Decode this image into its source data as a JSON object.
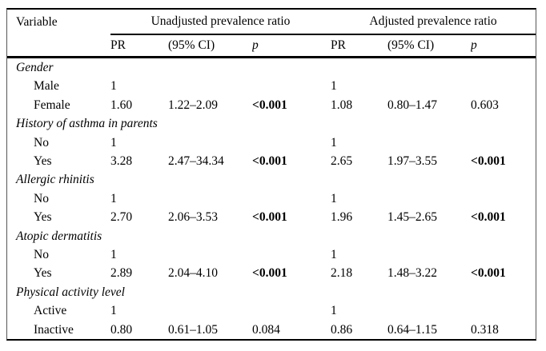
{
  "table": {
    "header": {
      "variable": "Variable",
      "groups": [
        {
          "label": "Unadjusted prevalence ratio"
        },
        {
          "label": "Adjusted prevalence ratio"
        }
      ],
      "subheaders": [
        "PR",
        "(95% CI)",
        "p",
        "PR",
        "(95% CI)",
        "p"
      ]
    },
    "sections": [
      {
        "label": "Gender",
        "rows": [
          {
            "label": "Male",
            "cells": [
              {
                "text": "1",
                "bold": false
              },
              {
                "text": "",
                "bold": false
              },
              {
                "text": "",
                "bold": false
              },
              {
                "text": "1",
                "bold": false
              },
              {
                "text": "",
                "bold": false
              },
              {
                "text": "",
                "bold": false
              }
            ]
          },
          {
            "label": "Female",
            "cells": [
              {
                "text": "1.60",
                "bold": false
              },
              {
                "text": "1.22–2.09",
                "bold": false
              },
              {
                "text": "<0.001",
                "bold": true
              },
              {
                "text": "1.08",
                "bold": false
              },
              {
                "text": "0.80–1.47",
                "bold": false
              },
              {
                "text": "0.603",
                "bold": false
              }
            ]
          }
        ]
      },
      {
        "label": "History of asthma in parents",
        "rows": [
          {
            "label": "No",
            "cells": [
              {
                "text": "1",
                "bold": false
              },
              {
                "text": "",
                "bold": false
              },
              {
                "text": "",
                "bold": false
              },
              {
                "text": "1",
                "bold": false
              },
              {
                "text": "",
                "bold": false
              },
              {
                "text": "",
                "bold": false
              }
            ]
          },
          {
            "label": "Yes",
            "cells": [
              {
                "text": "3.28",
                "bold": false
              },
              {
                "text": "2.47–34.34",
                "bold": false
              },
              {
                "text": "<0.001",
                "bold": true
              },
              {
                "text": "2.65",
                "bold": false
              },
              {
                "text": "1.97–3.55",
                "bold": false
              },
              {
                "text": "<0.001",
                "bold": true
              }
            ]
          }
        ]
      },
      {
        "label": "Allergic rhinitis",
        "rows": [
          {
            "label": "No",
            "cells": [
              {
                "text": "1",
                "bold": false
              },
              {
                "text": "",
                "bold": false
              },
              {
                "text": "",
                "bold": false
              },
              {
                "text": "1",
                "bold": false
              },
              {
                "text": "",
                "bold": false
              },
              {
                "text": "",
                "bold": false
              }
            ]
          },
          {
            "label": "Yes",
            "cells": [
              {
                "text": "2.70",
                "bold": false
              },
              {
                "text": "2.06–3.53",
                "bold": false
              },
              {
                "text": "<0.001",
                "bold": true
              },
              {
                "text": "1.96",
                "bold": false
              },
              {
                "text": "1.45–2.65",
                "bold": false
              },
              {
                "text": "<0.001",
                "bold": true
              }
            ]
          }
        ]
      },
      {
        "label": "Atopic dermatitis",
        "rows": [
          {
            "label": "No",
            "cells": [
              {
                "text": "1",
                "bold": false
              },
              {
                "text": "",
                "bold": false
              },
              {
                "text": "",
                "bold": false
              },
              {
                "text": "1",
                "bold": false
              },
              {
                "text": "",
                "bold": false
              },
              {
                "text": "",
                "bold": false
              }
            ]
          },
          {
            "label": "Yes",
            "cells": [
              {
                "text": "2.89",
                "bold": false
              },
              {
                "text": "2.04–4.10",
                "bold": false
              },
              {
                "text": "<0.001",
                "bold": true
              },
              {
                "text": "2.18",
                "bold": false
              },
              {
                "text": "1.48–3.22",
                "bold": false
              },
              {
                "text": "<0.001",
                "bold": true
              }
            ]
          }
        ]
      },
      {
        "label": "Physical activity level",
        "rows": [
          {
            "label": "Active",
            "cells": [
              {
                "text": "1",
                "bold": false
              },
              {
                "text": "",
                "bold": false
              },
              {
                "text": "",
                "bold": false
              },
              {
                "text": "1",
                "bold": false
              },
              {
                "text": "",
                "bold": false
              },
              {
                "text": "",
                "bold": false
              }
            ]
          },
          {
            "label": "Inactive",
            "cells": [
              {
                "text": "0.80",
                "bold": false
              },
              {
                "text": "0.61–1.05",
                "bold": false
              },
              {
                "text": "0.084",
                "bold": false
              },
              {
                "text": "0.86",
                "bold": false
              },
              {
                "text": "0.64–1.15",
                "bold": false
              },
              {
                "text": "0.318",
                "bold": false
              }
            ]
          }
        ]
      }
    ]
  }
}
